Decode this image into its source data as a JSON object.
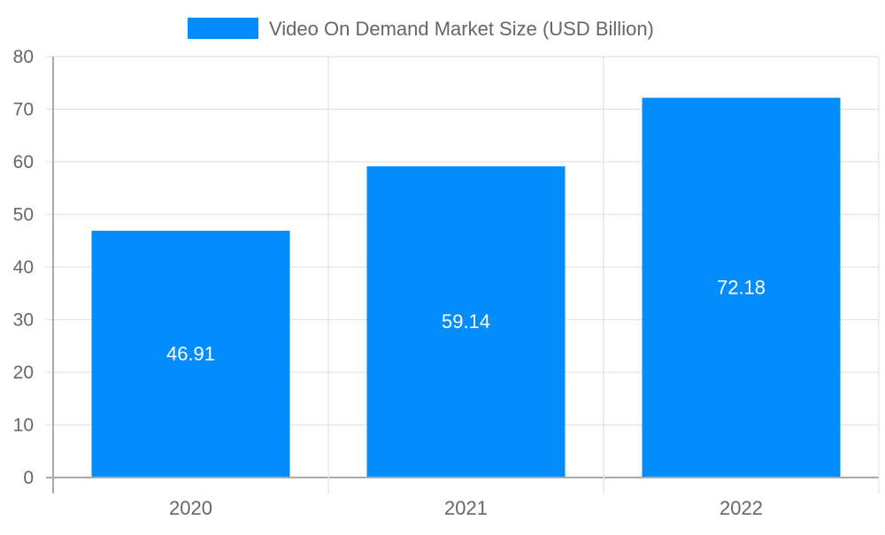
{
  "legend": {
    "label": "Video On Demand Market Size (USD Billion)",
    "color": "#038cfc"
  },
  "chart_data": {
    "type": "bar",
    "title": "",
    "categories": [
      "2020",
      "2021",
      "2022"
    ],
    "series": [
      {
        "name": "Video On Demand Market Size (USD Billion)",
        "values": [
          46.91,
          59.14,
          72.18
        ],
        "color": "#038cfc"
      }
    ],
    "values": [
      46.91,
      59.14,
      72.18
    ],
    "value_labels": [
      "46.91",
      "59.14",
      "72.18"
    ],
    "xlabel": "",
    "ylabel": "",
    "ylim": [
      0,
      80
    ],
    "yticks": [
      "0",
      "10",
      "20",
      "30",
      "40",
      "50",
      "60",
      "70",
      "80"
    ],
    "grid": true,
    "legend_position": "top"
  }
}
